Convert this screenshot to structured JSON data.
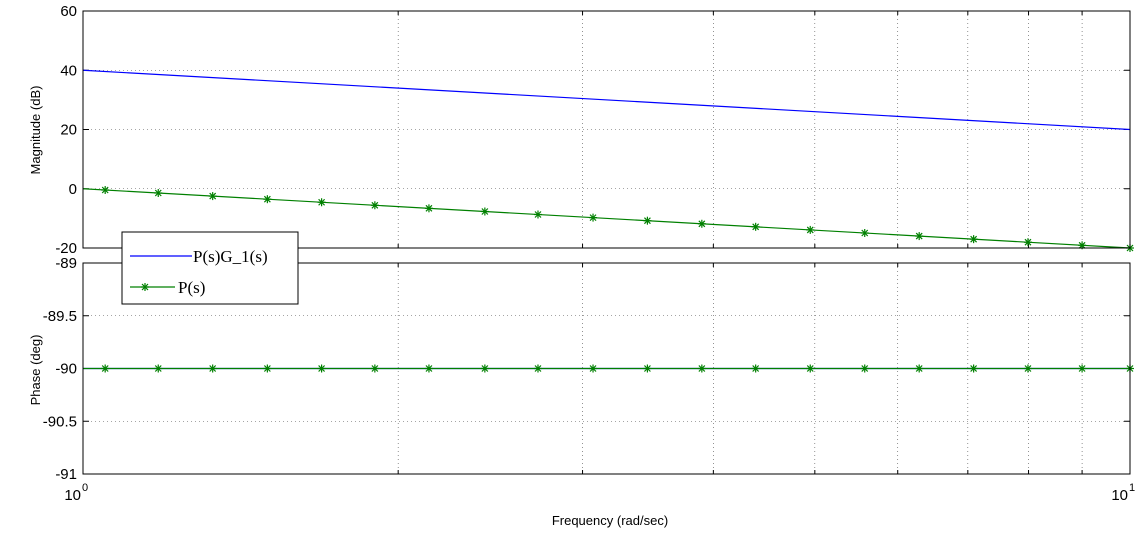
{
  "chart_data": [
    {
      "type": "line",
      "panel": "magnitude",
      "ylabel": "Magnitude (dB)",
      "xscale": "log",
      "xlim": [
        1,
        10
      ],
      "ylim": [
        -20,
        60
      ],
      "yticks": [
        -20,
        0,
        20,
        40,
        60
      ],
      "grid": true,
      "series": [
        {
          "name": "P(s)G_1(s)",
          "color": "#0000ff",
          "marker": "none",
          "x": [
            1,
            10
          ],
          "y": [
            40,
            20
          ]
        },
        {
          "name": "P(s)",
          "color": "#008000",
          "marker": "asterisk",
          "x": [
            1,
            10
          ],
          "y": [
            0,
            -20
          ],
          "marker_x": [
            1.05,
            1.18,
            1.33,
            1.5,
            1.69,
            1.9,
            2.14,
            2.42,
            2.72,
            3.07,
            3.46,
            3.9,
            4.39,
            4.95,
            5.58,
            6.29,
            7.09,
            7.99,
            9.0,
            10.0
          ]
        }
      ],
      "legend": {
        "position": "south-west",
        "entries": [
          "P(s)G_1(s)",
          "P(s)"
        ]
      }
    },
    {
      "type": "line",
      "panel": "phase",
      "ylabel": "Phase (deg)",
      "xlabel": "Frequency (rad/sec)",
      "xscale": "log",
      "xlim": [
        1,
        10
      ],
      "ylim": [
        -91,
        -89
      ],
      "yticks": [
        -91,
        -90.5,
        -90,
        -89.5,
        -89
      ],
      "xticks": [
        1,
        10
      ],
      "xtick_labels": [
        {
          "base": "10",
          "exp": "0"
        },
        {
          "base": "10",
          "exp": "1"
        }
      ],
      "grid": true,
      "series": [
        {
          "name": "P(s)G_1(s)",
          "color": "#0000ff",
          "marker": "none",
          "x": [
            1,
            10
          ],
          "y": [
            -90,
            -90
          ]
        },
        {
          "name": "P(s)",
          "color": "#008000",
          "marker": "asterisk",
          "x": [
            1,
            10
          ],
          "y": [
            -90,
            -90
          ],
          "marker_x": [
            1.05,
            1.18,
            1.33,
            1.5,
            1.69,
            1.9,
            2.14,
            2.42,
            2.72,
            3.07,
            3.46,
            3.9,
            4.39,
            4.95,
            5.58,
            6.29,
            7.09,
            7.99,
            9.0,
            10.0
          ]
        }
      ]
    }
  ]
}
